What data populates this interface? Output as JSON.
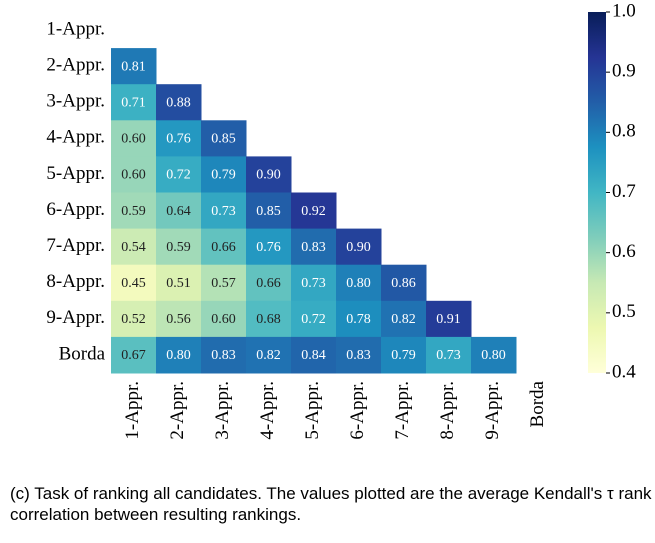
{
  "chart_data": {
    "type": "heatmap",
    "rows": [
      "1-Appr.",
      "2-Appr.",
      "3-Appr.",
      "4-Appr.",
      "5-Appr.",
      "6-Appr.",
      "7-Appr.",
      "8-Appr.",
      "9-Appr.",
      "Borda"
    ],
    "columns": [
      "1-Appr.",
      "2-Appr.",
      "3-Appr.",
      "4-Appr.",
      "5-Appr.",
      "6-Appr.",
      "7-Appr.",
      "8-Appr.",
      "9-Appr.",
      "Borda"
    ],
    "values": [
      [
        null,
        null,
        null,
        null,
        null,
        null,
        null,
        null,
        null,
        null
      ],
      [
        0.81,
        null,
        null,
        null,
        null,
        null,
        null,
        null,
        null,
        null
      ],
      [
        0.71,
        0.88,
        null,
        null,
        null,
        null,
        null,
        null,
        null,
        null
      ],
      [
        0.6,
        0.76,
        0.85,
        null,
        null,
        null,
        null,
        null,
        null,
        null
      ],
      [
        0.6,
        0.72,
        0.79,
        0.9,
        null,
        null,
        null,
        null,
        null,
        null
      ],
      [
        0.59,
        0.64,
        0.73,
        0.85,
        0.92,
        null,
        null,
        null,
        null,
        null
      ],
      [
        0.54,
        0.59,
        0.66,
        0.76,
        0.83,
        0.9,
        null,
        null,
        null,
        null
      ],
      [
        0.45,
        0.51,
        0.57,
        0.66,
        0.73,
        0.8,
        0.86,
        null,
        null,
        null
      ],
      [
        0.52,
        0.56,
        0.6,
        0.68,
        0.72,
        0.78,
        0.82,
        0.91,
        null,
        null
      ],
      [
        0.67,
        0.8,
        0.83,
        0.82,
        0.84,
        0.83,
        0.79,
        0.73,
        0.8,
        null
      ]
    ],
    "value_labels": [
      [
        null,
        null,
        null,
        null,
        null,
        null,
        null,
        null,
        null,
        null
      ],
      [
        "0.81",
        null,
        null,
        null,
        null,
        null,
        null,
        null,
        null,
        null
      ],
      [
        "0.71",
        "0.88",
        null,
        null,
        null,
        null,
        null,
        null,
        null,
        null
      ],
      [
        "0.60",
        "0.76",
        "0.85",
        null,
        null,
        null,
        null,
        null,
        null,
        null
      ],
      [
        "0.60",
        "0.72",
        "0.79",
        "0.90",
        null,
        null,
        null,
        null,
        null,
        null
      ],
      [
        "0.59",
        "0.64",
        "0.73",
        "0.85",
        "0.92",
        null,
        null,
        null,
        null,
        null
      ],
      [
        "0.54",
        "0.59",
        "0.66",
        "0.76",
        "0.83",
        "0.90",
        null,
        null,
        null,
        null
      ],
      [
        "0.45",
        "0.51",
        "0.57",
        "0.66",
        "0.73",
        "0.80",
        "0.86",
        null,
        null,
        null
      ],
      [
        "0.52",
        "0.56",
        "0.60",
        "0.68",
        "0.72",
        "0.78",
        "0.82",
        "0.91",
        null,
        null
      ],
      [
        "0.67",
        "0.80",
        "0.83",
        "0.82",
        "0.84",
        "0.83",
        "0.79",
        "0.73",
        "0.80",
        null
      ]
    ],
    "colorscale": [
      "#ffffd9",
      "#edf8b1",
      "#c7e9b4",
      "#7fcdbb",
      "#41b6c4",
      "#1d91c0",
      "#225ea8",
      "#253494",
      "#081d58"
    ],
    "zlim": [
      0.4,
      1
    ],
    "zticks": [
      0.4,
      0.5,
      0.6,
      0.7,
      0.8,
      0.9,
      {
        "value": 1,
        "label": "1.0"
      }
    ]
  },
  "caption": "(c) Task of ranking all candidates. The values plotted are the average Kendall's τ rank correlation between resulting rankings."
}
